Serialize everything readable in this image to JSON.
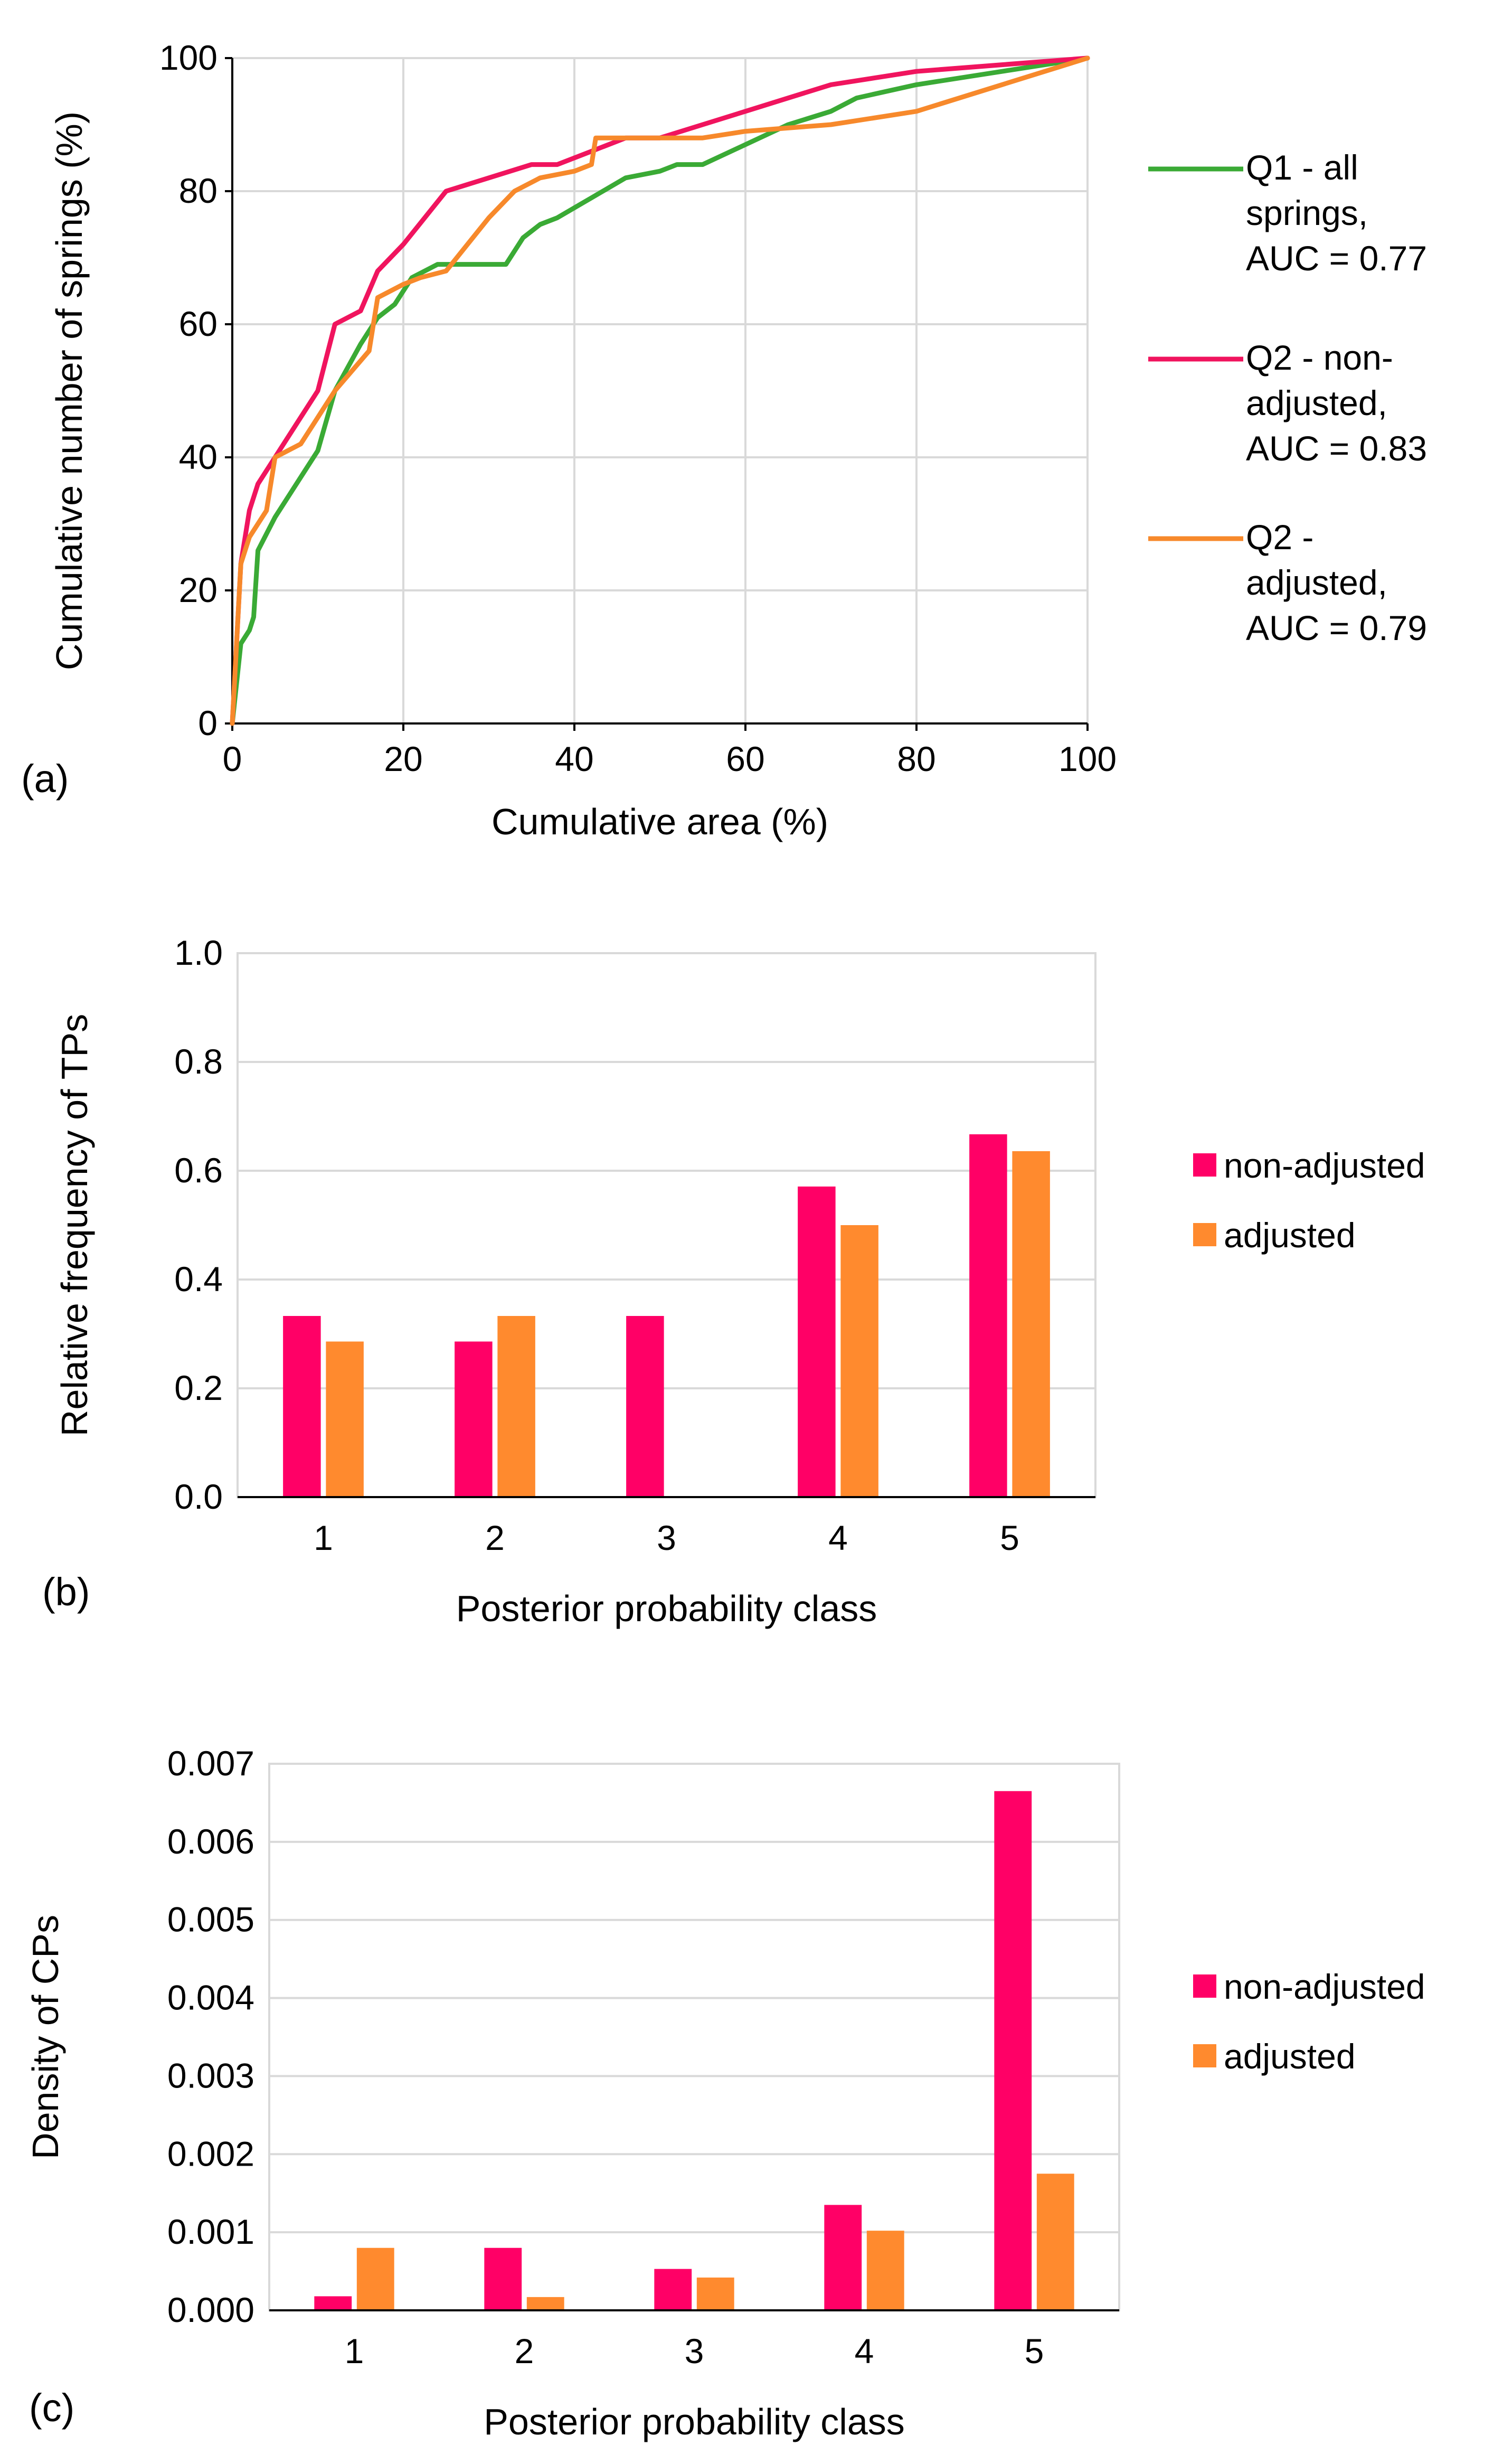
{
  "chart_data": [
    {
      "panel": "(a)",
      "type": "line",
      "title": "",
      "xlabel": "Cumulative area (%)",
      "ylabel": "Cumulative number of springs (%)",
      "xlim": [
        0,
        100
      ],
      "ylim": [
        0,
        100
      ],
      "xticks": [
        "0",
        "20",
        "40",
        "60",
        "80",
        "100"
      ],
      "yticks": [
        "0",
        "20",
        "40",
        "60",
        "80",
        "100"
      ],
      "grid": true,
      "legend_position": "right",
      "series": [
        {
          "name": "Q1 - all springs, AUC = 0.77",
          "legend_lines": [
            "Q1 - all",
            "springs,",
            "AUC = 0.77"
          ],
          "color": "#3aaa35",
          "x": [
            0,
            0.5,
            1,
            2,
            2.5,
            3,
            5,
            7,
            10,
            12,
            15,
            17,
            19,
            21,
            24,
            26,
            30,
            32,
            34,
            36,
            38,
            42,
            46,
            50,
            52,
            55,
            60,
            65,
            70,
            73,
            80,
            90,
            100
          ],
          "y": [
            0,
            6,
            12,
            14,
            16,
            26,
            31,
            35,
            41,
            50,
            57,
            61,
            63,
            67,
            69,
            69,
            69,
            69,
            73,
            75,
            76,
            79,
            82,
            83,
            84,
            84,
            87,
            90,
            92,
            94,
            96,
            98,
            100
          ]
        },
        {
          "name": "Q2 - non-adjusted, AUC = 0.83",
          "legend_lines": [
            "Q2 - non-",
            "adjusted,",
            "AUC = 0.83"
          ],
          "color": "#f0145e",
          "x": [
            0,
            0.5,
            1,
            2,
            3,
            5,
            7,
            10,
            12,
            15,
            17,
            20,
            25,
            30,
            35,
            38,
            42,
            46,
            50,
            55,
            60,
            65,
            70,
            75,
            80,
            90,
            100
          ],
          "y": [
            0,
            12,
            24,
            32,
            36,
            40,
            44,
            50,
            60,
            62,
            68,
            72,
            80,
            82,
            84,
            84,
            86,
            88,
            88,
            90,
            92,
            94,
            96,
            97,
            98,
            99,
            100
          ]
        },
        {
          "name": "Q2 - adjusted, AUC = 0.79",
          "legend_lines": [
            "Q2 -",
            "adjusted,",
            "AUC = 0.79"
          ],
          "color": "#f7892b",
          "x": [
            0,
            0.5,
            1,
            2,
            4,
            5,
            8,
            10,
            12,
            14,
            16,
            17,
            20,
            22,
            25,
            30,
            33,
            36,
            40,
            42,
            42.5,
            45,
            50,
            55,
            60,
            70,
            80,
            90,
            100
          ],
          "y": [
            0,
            12,
            24,
            28,
            32,
            40,
            42,
            46,
            50,
            53,
            56,
            64,
            66,
            67,
            68,
            76,
            80,
            82,
            83,
            84,
            88,
            88,
            88,
            88,
            89,
            90,
            92,
            96,
            100
          ]
        }
      ]
    },
    {
      "panel": "(b)",
      "type": "bar",
      "title": "",
      "xlabel": "Posterior probability class",
      "ylabel": "Relative frequency of TPs",
      "categories": [
        "1",
        "2",
        "3",
        "4",
        "5"
      ],
      "ylim": [
        0,
        1.0
      ],
      "yticks": [
        "0.0",
        "0.2",
        "0.4",
        "0.6",
        "0.8",
        "1.0"
      ],
      "grid": true,
      "legend_position": "right",
      "series": [
        {
          "name": "non-adjusted",
          "color": "#ff0066",
          "values": [
            0.333,
            0.286,
            0.333,
            0.571,
            0.667
          ]
        },
        {
          "name": "adjusted",
          "color": "#ff8a2e",
          "values": [
            0.286,
            0.333,
            0.0,
            0.5,
            0.636
          ]
        }
      ]
    },
    {
      "panel": "(c)",
      "type": "bar",
      "title": "",
      "xlabel": "Posterior probability class",
      "ylabel": "Density of CPs",
      "categories": [
        "1",
        "2",
        "3",
        "4",
        "5"
      ],
      "ylim": [
        0,
        0.007
      ],
      "yticks": [
        "0.000",
        "0.001",
        "0.002",
        "0.003",
        "0.004",
        "0.005",
        "0.006",
        "0.007"
      ],
      "grid": true,
      "legend_position": "right",
      "series": [
        {
          "name": "non-adjusted",
          "color": "#ff0066",
          "values": [
            0.00018,
            0.0008,
            0.00053,
            0.00135,
            0.00665
          ]
        },
        {
          "name": "adjusted",
          "color": "#ff8a2e",
          "values": [
            0.0008,
            0.00017,
            0.00042,
            0.00102,
            0.00175
          ]
        }
      ]
    }
  ]
}
